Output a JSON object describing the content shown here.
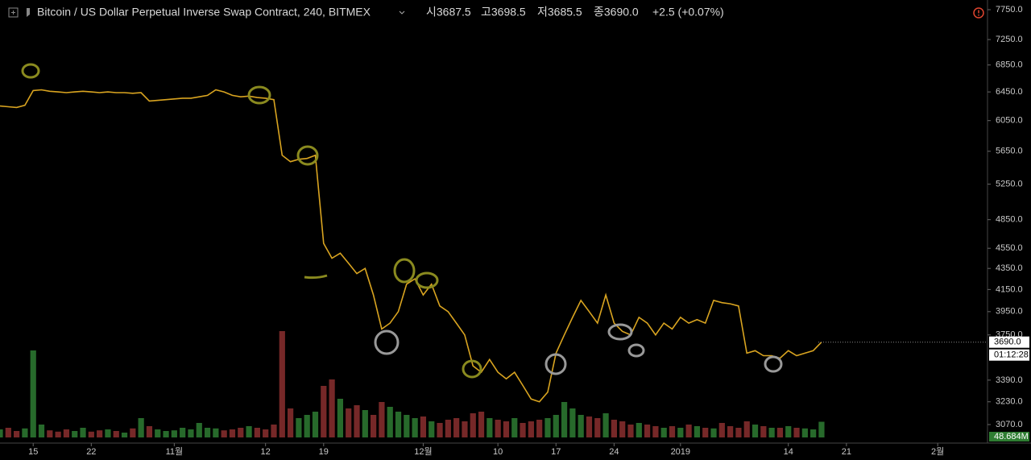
{
  "header": {
    "symbol": "Bitcoin / US Dollar Perpetual Inverse Swap Contract, 240, BITMEX",
    "ohlc": [
      "시3687.5",
      "고3698.5",
      "저3685.5",
      "종3690.0"
    ],
    "change": "+2.5 (+0.07%)"
  },
  "chart_data": {
    "type": "line",
    "log_scale": true,
    "color": "#d9a420",
    "up_color": "#2e7d32",
    "down_color": "#8b2f2f",
    "x": [
      -4,
      -3,
      -2,
      -1,
      0,
      1,
      2,
      3,
      4,
      5,
      6,
      7,
      8,
      9,
      10,
      11,
      12,
      13,
      14,
      15,
      16,
      17,
      18,
      19,
      20,
      21,
      22,
      23,
      24,
      25,
      26,
      27,
      28,
      29,
      30,
      31,
      32,
      33,
      34,
      35,
      36,
      37,
      38,
      39,
      40,
      41,
      42,
      43,
      44,
      45,
      46,
      47,
      48,
      49,
      50,
      51,
      52,
      53,
      54,
      55,
      56,
      57,
      58,
      59,
      60,
      61,
      62,
      63,
      64,
      65,
      66,
      67,
      68,
      69,
      70,
      71,
      72,
      73,
      74,
      75,
      76,
      77,
      78,
      79,
      80,
      81,
      82,
      83,
      84,
      85,
      86,
      87,
      88,
      89,
      90,
      91,
      92,
      93,
      94,
      95
    ],
    "series": [
      {
        "name": "Price",
        "values": [
          6250,
          6240,
          6230,
          6260,
          6470,
          6480,
          6460,
          6450,
          6440,
          6450,
          6460,
          6450,
          6440,
          6450,
          6440,
          6440,
          6430,
          6440,
          6320,
          6330,
          6340,
          6350,
          6360,
          6360,
          6380,
          6400,
          6480,
          6450,
          6400,
          6380,
          6390,
          6370,
          6360,
          6340,
          5600,
          5520,
          5550,
          5560,
          5600,
          4600,
          4450,
          4500,
          4400,
          4300,
          4350,
          4100,
          3800,
          3850,
          3950,
          4200,
          4250,
          4100,
          4200,
          4000,
          3950,
          3850,
          3750,
          3500,
          3450,
          3550,
          3450,
          3400,
          3450,
          3350,
          3250,
          3230,
          3300,
          3600,
          3750,
          3900,
          4050,
          3950,
          3850,
          4100,
          3850,
          3780,
          3750,
          3900,
          3850,
          3750,
          3850,
          3800,
          3900,
          3850,
          3880,
          3850,
          4050,
          4030,
          4020,
          4000,
          3600,
          3620,
          3580,
          3580,
          3560,
          3620,
          3580,
          3600,
          3620,
          3690
        ]
      },
      {
        "name": "Volume",
        "axis": "y2",
        "values": [
          25,
          30,
          20,
          28,
          270,
          40,
          22,
          18,
          25,
          20,
          30,
          18,
          22,
          25,
          20,
          15,
          28,
          60,
          35,
          25,
          20,
          22,
          30,
          25,
          45,
          30,
          28,
          22,
          25,
          30,
          35,
          30,
          25,
          40,
          330,
          90,
          60,
          70,
          80,
          160,
          180,
          120,
          90,
          100,
          85,
          70,
          110,
          95,
          80,
          70,
          60,
          65,
          50,
          45,
          55,
          60,
          50,
          75,
          80,
          60,
          55,
          50,
          60,
          45,
          50,
          55,
          60,
          70,
          110,
          90,
          70,
          65,
          60,
          75,
          55,
          50,
          40,
          45,
          40,
          35,
          30,
          35,
          30,
          40,
          35,
          30,
          28,
          45,
          35,
          30,
          50,
          40,
          35,
          30,
          30,
          35,
          30,
          28,
          25,
          48.684
        ]
      }
    ],
    "xlim": [
      -4,
      115
    ],
    "xticks": [
      {
        "value": 0,
        "label": "15"
      },
      {
        "value": 7,
        "label": "22"
      },
      {
        "value": 17,
        "label": "11월"
      },
      {
        "value": 28,
        "label": "12"
      },
      {
        "value": 35,
        "label": "19"
      },
      {
        "value": 47,
        "label": "12월"
      },
      {
        "value": 56,
        "label": "10"
      },
      {
        "value": 63,
        "label": "17"
      },
      {
        "value": 70,
        "label": "24"
      },
      {
        "value": 78,
        "label": "2019"
      },
      {
        "value": 91,
        "label": "14"
      },
      {
        "value": 98,
        "label": "21"
      },
      {
        "value": 109,
        "label": "2월"
      }
    ],
    "ylim": [
      3070,
      7750
    ],
    "yticks": [
      {
        "value": 7750,
        "label": "7750.0"
      },
      {
        "value": 7250,
        "label": "7250.0"
      },
      {
        "value": 6850,
        "label": "6850.0"
      },
      {
        "value": 6450,
        "label": "6450.0"
      },
      {
        "value": 6050,
        "label": "6050.0"
      },
      {
        "value": 5650,
        "label": "5650.0"
      },
      {
        "value": 5250,
        "label": "5250.0"
      },
      {
        "value": 4850,
        "label": "4850.0"
      },
      {
        "value": 4550,
        "label": "4550.0"
      },
      {
        "value": 4350,
        "label": "4350.0"
      },
      {
        "value": 4150,
        "label": "4150.0"
      },
      {
        "value": 3950,
        "label": "3950.0"
      },
      {
        "value": 3750,
        "label": "3750.0"
      },
      {
        "value": 3390,
        "label": "3390.0"
      },
      {
        "value": 3230,
        "label": "3230.0"
      },
      {
        "value": 3070,
        "label": "3070.0"
      }
    ],
    "y2lim": [
      0,
      350
    ],
    "last_price": {
      "value": 3690,
      "label": "3690.0"
    },
    "countdown": "01:12:28",
    "volume_label": "48.684M"
  }
}
